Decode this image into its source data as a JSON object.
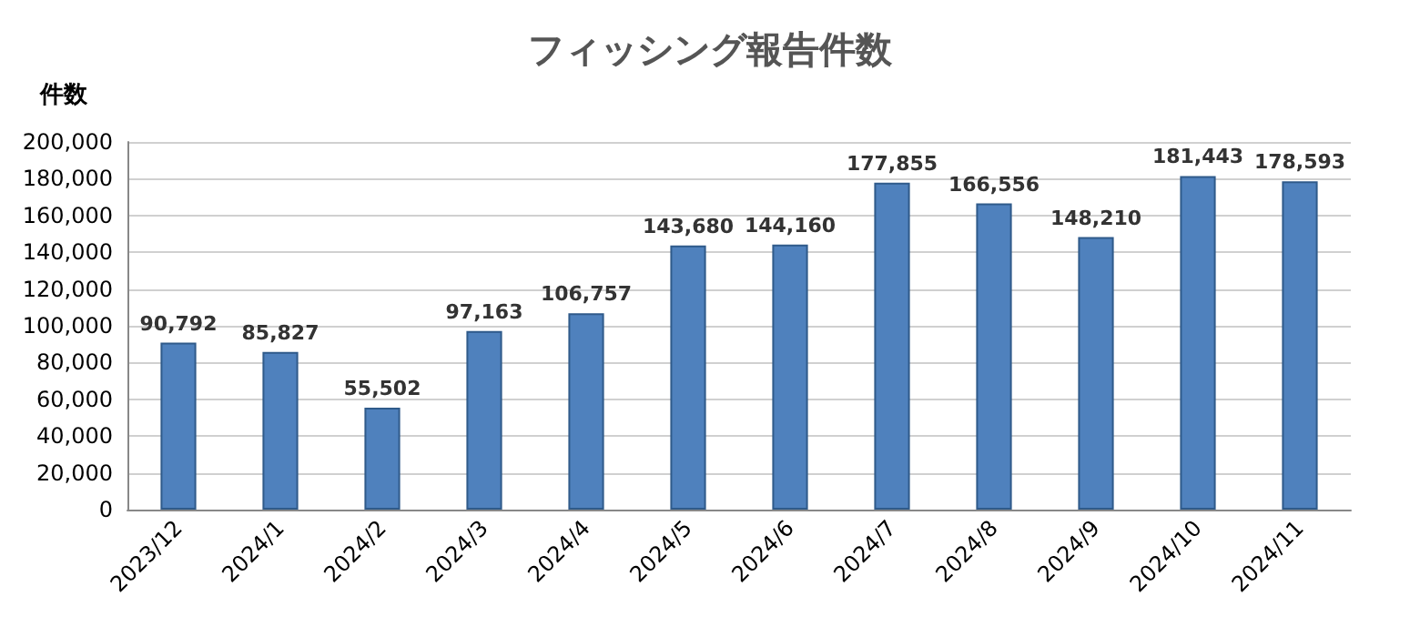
{
  "chart_data": {
    "type": "bar",
    "title": "フィッシング報告件数",
    "ylabel": "件数",
    "categories": [
      "2023/12",
      "2024/1",
      "2024/2",
      "2024/3",
      "2024/4",
      "2024/5",
      "2024/6",
      "2024/7",
      "2024/8",
      "2024/9",
      "2024/10",
      "2024/11"
    ],
    "values": [
      90792,
      85827,
      55502,
      97163,
      106757,
      143680,
      144160,
      177855,
      166556,
      148210,
      181443,
      178593
    ],
    "value_labels": [
      "90,792",
      "85,827",
      "55,502",
      "97,163",
      "106,757",
      "143,680",
      "144,160",
      "177,855",
      "166,556",
      "148,210",
      "181,443",
      "178,593"
    ],
    "color": "#4f81bd",
    "ylim": [
      0,
      200000
    ],
    "yticks": [
      0,
      {
        "value": 20000,
        "label": "20,000"
      },
      {
        "value": 40000,
        "label": "40,000"
      },
      {
        "value": 60000,
        "label": "60,000"
      },
      {
        "value": 80000,
        "label": "80,000"
      },
      {
        "value": 100000,
        "label": "100,000"
      },
      {
        "value": 120000,
        "label": "120,000"
      },
      {
        "value": 140000,
        "label": "140,000"
      },
      {
        "value": 160000,
        "label": "160,000"
      },
      {
        "value": 180000,
        "label": "180,000"
      },
      {
        "value": 200000,
        "label": "200,000"
      }
    ],
    "grid": "y"
  }
}
